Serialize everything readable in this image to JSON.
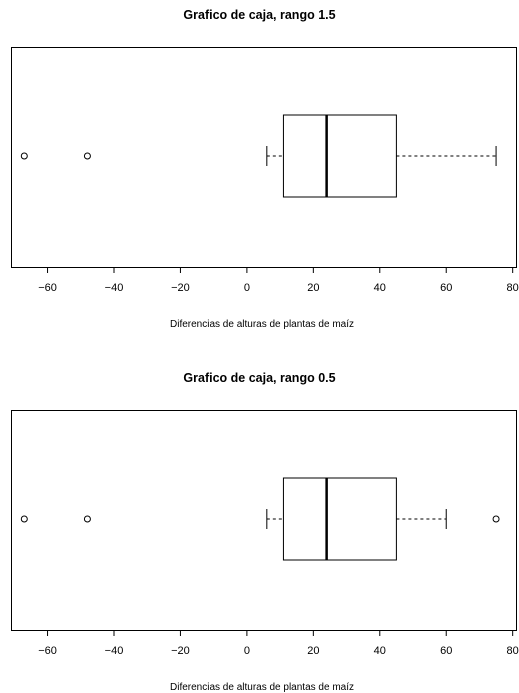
{
  "chart_data": [
    {
      "type": "boxplot",
      "orientation": "horizontal",
      "title": "Grafico de caja, rango 1.5",
      "xlabel": "Diferencias de alturas de plantas de maíz",
      "xlim": [
        -71,
        81
      ],
      "ticks": [
        -60,
        -40,
        -20,
        0,
        20,
        40,
        60,
        80
      ],
      "tick_labels": [
        "−60",
        "−40",
        "−20",
        "0",
        "20",
        "40",
        "60",
        "80"
      ],
      "box": {
        "whisker_low": 6,
        "q1": 11,
        "median": 24,
        "q3": 45,
        "whisker_high": 75
      },
      "outliers": [
        -67,
        -48
      ]
    },
    {
      "type": "boxplot",
      "orientation": "horizontal",
      "title": "Grafico de caja, rango 0.5",
      "xlabel": "Diferencias de alturas de plantas de maíz",
      "xlim": [
        -71,
        81
      ],
      "ticks": [
        -60,
        -40,
        -20,
        0,
        20,
        40,
        60,
        80
      ],
      "tick_labels": [
        "−60",
        "−40",
        "−20",
        "0",
        "20",
        "40",
        "60",
        "80"
      ],
      "box": {
        "whisker_low": 6,
        "q1": 11,
        "median": 24,
        "q3": 45,
        "whisker_high": 60
      },
      "outliers": [
        -67,
        -48,
        75
      ]
    }
  ]
}
